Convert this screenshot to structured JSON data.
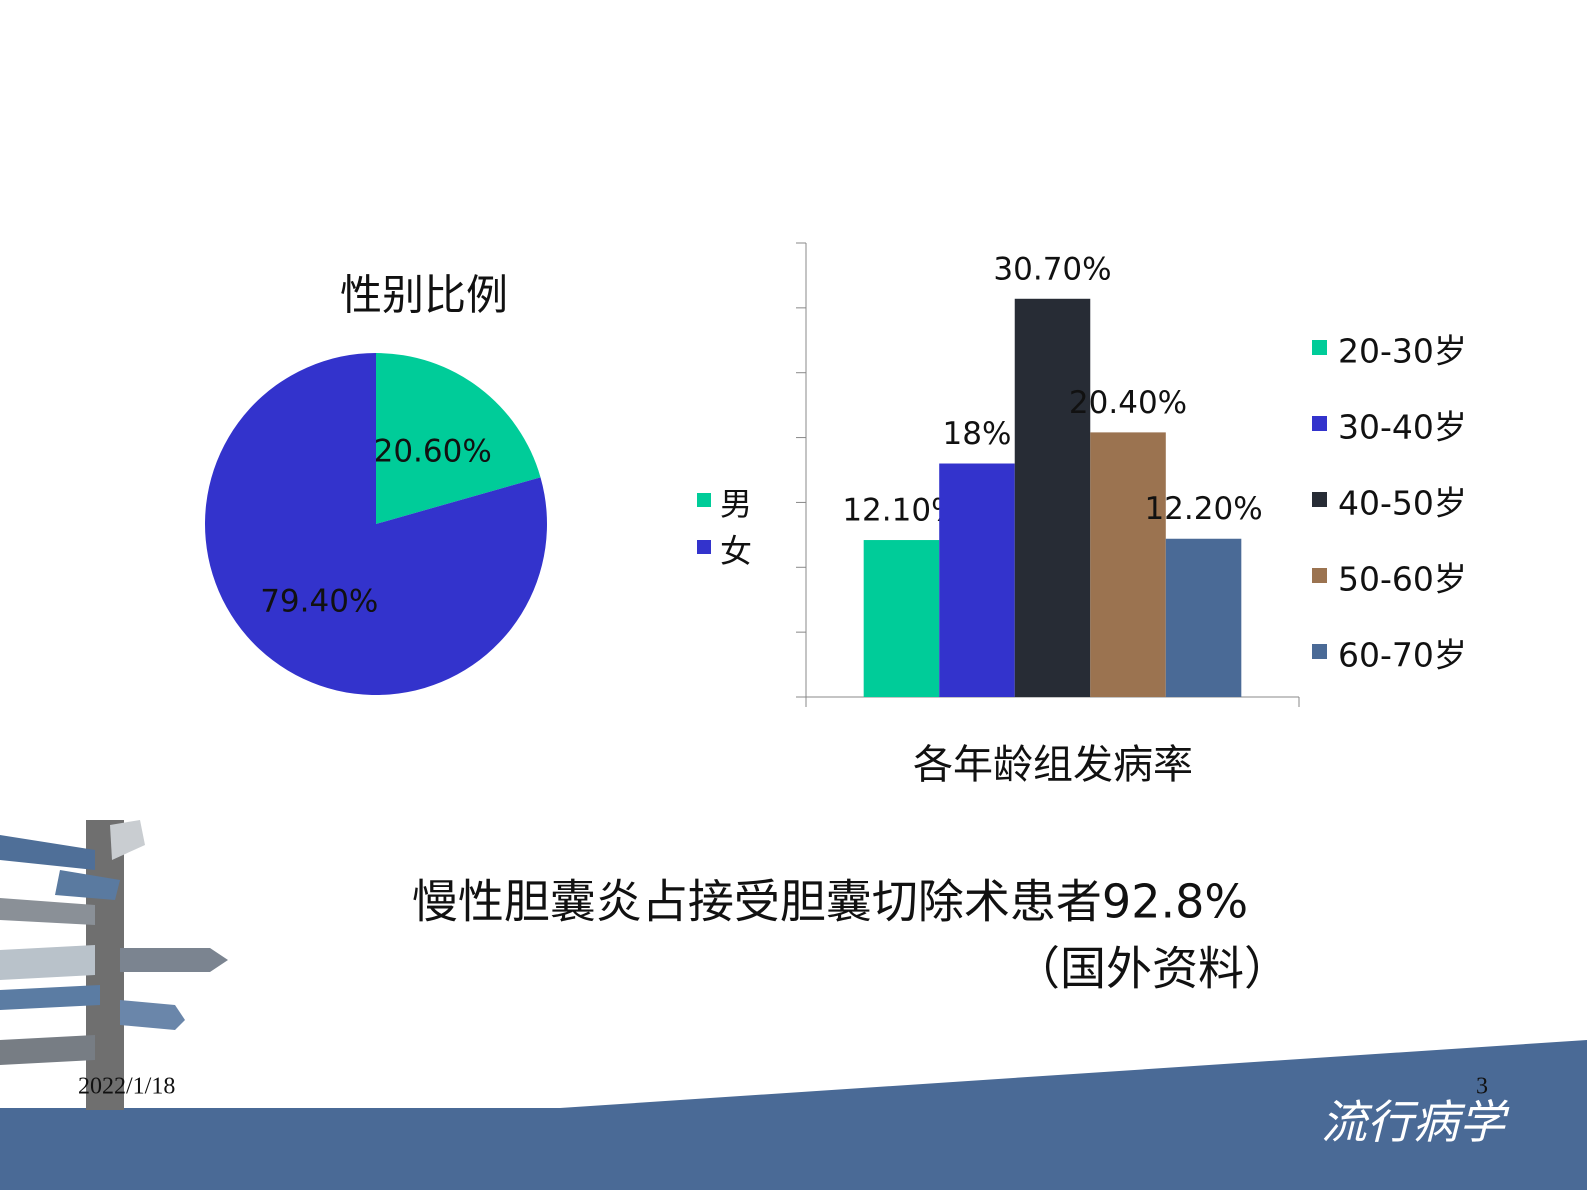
{
  "chart_data": [
    {
      "type": "pie",
      "title": "性别比例",
      "categories": [
        "男",
        "女"
      ],
      "values": [
        20.6,
        79.4
      ],
      "value_labels": [
        "20.60%",
        "79.40%"
      ],
      "colors": [
        "#00cc99",
        "#3333cc"
      ]
    },
    {
      "type": "bar",
      "title": "各年龄组发病率",
      "categories": [
        null
      ],
      "ylim": [
        0,
        35
      ],
      "yticks": [
        0,
        5,
        10,
        15,
        20,
        25,
        30,
        35
      ],
      "series": [
        {
          "name": "20-30岁",
          "color": "#00cc99",
          "values": [
            12.1
          ],
          "value_labels": [
            "12.10%"
          ]
        },
        {
          "name": "30-40岁",
          "color": "#3333cc",
          "values": [
            18
          ],
          "value_labels": [
            "18%"
          ]
        },
        {
          "name": "40-50岁",
          "color": "#272c35",
          "values": [
            30.7
          ],
          "value_labels": [
            "30.70%"
          ]
        },
        {
          "name": "50-60岁",
          "color": "#9b7350",
          "values": [
            20.4
          ],
          "value_labels": [
            "20.40%"
          ]
        },
        {
          "name": "60-70岁",
          "color": "#4a6a96",
          "values": [
            12.2
          ],
          "value_labels": [
            "12.20%"
          ]
        }
      ]
    }
  ],
  "slide": {
    "text": "慢性胆囊炎占接受胆囊切除术患者92.8%",
    "source": "（国外资料）",
    "date": "2022/1/18",
    "page": "3",
    "footer": "流行病学"
  }
}
